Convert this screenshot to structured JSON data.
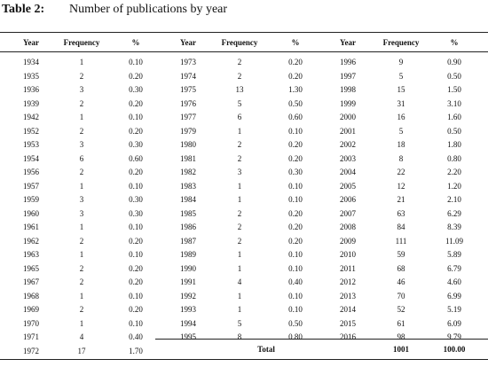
{
  "title": {
    "label": "Table 2:",
    "text": "Number of publications by year"
  },
  "groups": [
    {
      "header": [
        "Year",
        "Frequency",
        "%"
      ],
      "rows": [
        [
          "1934",
          "1",
          "0.10"
        ],
        [
          "1935",
          "2",
          "0.20"
        ],
        [
          "1936",
          "3",
          "0.30"
        ],
        [
          "1939",
          "2",
          "0.20"
        ],
        [
          "1942",
          "1",
          "0.10"
        ],
        [
          "1952",
          "2",
          "0.20"
        ],
        [
          "1953",
          "3",
          "0.30"
        ],
        [
          "1954",
          "6",
          "0.60"
        ],
        [
          "1956",
          "2",
          "0.20"
        ],
        [
          "1957",
          "1",
          "0.10"
        ],
        [
          "1959",
          "3",
          "0.30"
        ],
        [
          "1960",
          "3",
          "0.30"
        ],
        [
          "1961",
          "1",
          "0.10"
        ],
        [
          "1962",
          "2",
          "0.20"
        ],
        [
          "1963",
          "1",
          "0.10"
        ],
        [
          "1965",
          "2",
          "0.20"
        ],
        [
          "1967",
          "2",
          "0.20"
        ],
        [
          "1968",
          "1",
          "0.10"
        ],
        [
          "1969",
          "2",
          "0.20"
        ],
        [
          "1970",
          "1",
          "0.10"
        ],
        [
          "1971",
          "4",
          "0.40"
        ],
        [
          "1972",
          "17",
          "1.70"
        ]
      ]
    },
    {
      "header": [
        "Year",
        "Frequency",
        "%"
      ],
      "rows": [
        [
          "1973",
          "2",
          "0.20"
        ],
        [
          "1974",
          "2",
          "0.20"
        ],
        [
          "1975",
          "13",
          "1.30"
        ],
        [
          "1976",
          "5",
          "0.50"
        ],
        [
          "1977",
          "6",
          "0.60"
        ],
        [
          "1979",
          "1",
          "0.10"
        ],
        [
          "1980",
          "2",
          "0.20"
        ],
        [
          "1981",
          "2",
          "0.20"
        ],
        [
          "1982",
          "3",
          "0.30"
        ],
        [
          "1983",
          "1",
          "0.10"
        ],
        [
          "1984",
          "1",
          "0.10"
        ],
        [
          "1985",
          "2",
          "0.20"
        ],
        [
          "1986",
          "2",
          "0.20"
        ],
        [
          "1987",
          "2",
          "0.20"
        ],
        [
          "1989",
          "1",
          "0.10"
        ],
        [
          "1990",
          "1",
          "0.10"
        ],
        [
          "1991",
          "4",
          "0.40"
        ],
        [
          "1992",
          "1",
          "0.10"
        ],
        [
          "1993",
          "1",
          "0.10"
        ],
        [
          "1994",
          "5",
          "0.50"
        ],
        [
          "1995",
          "8",
          "0.80"
        ]
      ]
    },
    {
      "header": [
        "Year",
        "Frequency",
        "%"
      ],
      "rows": [
        [
          "1996",
          "9",
          "0.90"
        ],
        [
          "1997",
          "5",
          "0.50"
        ],
        [
          "1998",
          "15",
          "1.50"
        ],
        [
          "1999",
          "31",
          "3.10"
        ],
        [
          "2000",
          "16",
          "1.60"
        ],
        [
          "2001",
          "5",
          "0.50"
        ],
        [
          "2002",
          "18",
          "1.80"
        ],
        [
          "2003",
          "8",
          "0.80"
        ],
        [
          "2004",
          "22",
          "2.20"
        ],
        [
          "2005",
          "12",
          "1.20"
        ],
        [
          "2006",
          "21",
          "2.10"
        ],
        [
          "2007",
          "63",
          "6.29"
        ],
        [
          "2008",
          "84",
          "8.39"
        ],
        [
          "2009",
          "111",
          "11.09"
        ],
        [
          "2010",
          "59",
          "5.89"
        ],
        [
          "2011",
          "68",
          "6.79"
        ],
        [
          "2012",
          "46",
          "4.60"
        ],
        [
          "2013",
          "70",
          "6.99"
        ],
        [
          "2014",
          "52",
          "5.19"
        ],
        [
          "2015",
          "61",
          "6.09"
        ],
        [
          "2016",
          "98",
          "9.79"
        ]
      ]
    }
  ],
  "total": {
    "label": "Total",
    "frequency": "1001",
    "percent": "100.00"
  }
}
